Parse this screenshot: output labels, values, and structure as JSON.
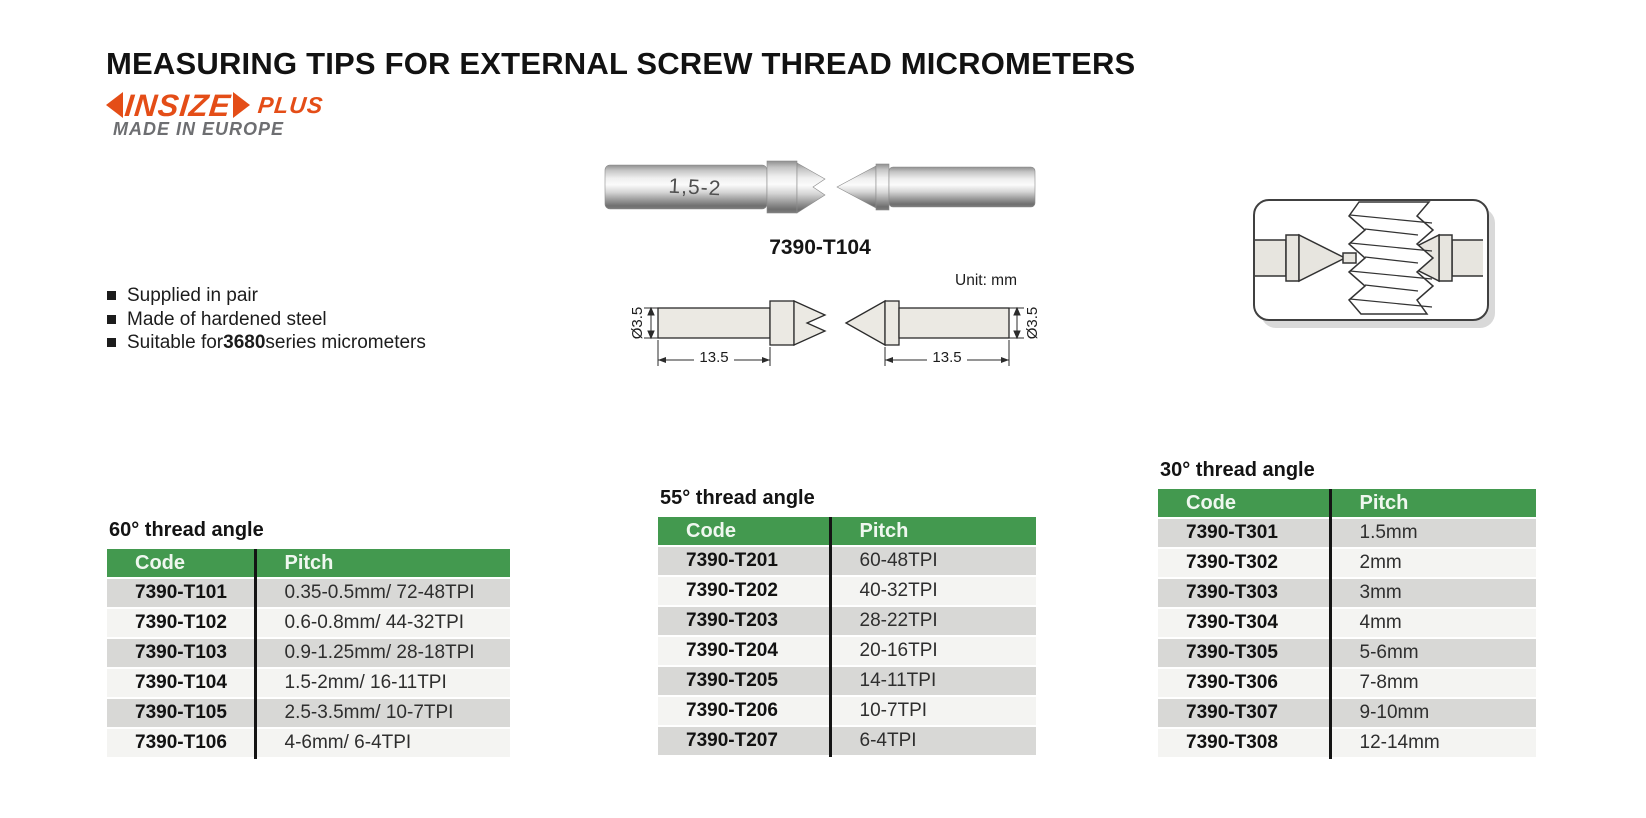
{
  "page": {
    "title": "MEASURING TIPS FOR EXTERNAL SCREW THREAD MICROMETERS"
  },
  "brand": {
    "name": "INSIZE",
    "plus": "PLUS",
    "tagline": "MADE IN EUROPE"
  },
  "features": [
    {
      "pre": "Supplied in pair",
      "bold": "",
      "post": ""
    },
    {
      "pre": "Made of hardened steel",
      "bold": "",
      "post": ""
    },
    {
      "pre": "Suitable for ",
      "bold": "3680",
      "post": " series micrometers"
    }
  ],
  "product": {
    "marking": "1,5-2",
    "model": "7390-T104",
    "unit_label": "Unit: mm",
    "diameter_label": "Ø3.5",
    "length_label": "13.5"
  },
  "tables": [
    {
      "title": "60° thread angle",
      "columns": [
        "Code",
        "Pitch"
      ],
      "rows": [
        [
          "7390-T101",
          "0.35-0.5mm/ 72-48TPI"
        ],
        [
          "7390-T102",
          "0.6-0.8mm/ 44-32TPI"
        ],
        [
          "7390-T103",
          "0.9-1.25mm/ 28-18TPI"
        ],
        [
          "7390-T104",
          "1.5-2mm/ 16-11TPI"
        ],
        [
          "7390-T105",
          "2.5-3.5mm/ 10-7TPI"
        ],
        [
          "7390-T106",
          "4-6mm/ 6-4TPI"
        ]
      ]
    },
    {
      "title": "55° thread angle",
      "columns": [
        "Code",
        "Pitch"
      ],
      "rows": [
        [
          "7390-T201",
          "60-48TPI"
        ],
        [
          "7390-T202",
          "40-32TPI"
        ],
        [
          "7390-T203",
          "28-22TPI"
        ],
        [
          "7390-T204",
          "20-16TPI"
        ],
        [
          "7390-T205",
          "14-11TPI"
        ],
        [
          "7390-T206",
          "10-7TPI"
        ],
        [
          "7390-T207",
          "6-4TPI"
        ]
      ]
    },
    {
      "title": "30° thread angle",
      "columns": [
        "Code",
        "Pitch"
      ],
      "rows": [
        [
          "7390-T301",
          "1.5mm"
        ],
        [
          "7390-T302",
          "2mm"
        ],
        [
          "7390-T303",
          "3mm"
        ],
        [
          "7390-T304",
          "4mm"
        ],
        [
          "7390-T305",
          "5-6mm"
        ],
        [
          "7390-T306",
          "7-8mm"
        ],
        [
          "7390-T307",
          "9-10mm"
        ],
        [
          "7390-T308",
          "12-14mm"
        ]
      ]
    }
  ],
  "colors": {
    "accent_orange": "#e44d17",
    "tagline_gray": "#6d6e71",
    "table_header_green": "#43994f",
    "row_gray": "#d8d8d6",
    "row_light": "#f4f4f2",
    "divider_black": "#141414"
  }
}
